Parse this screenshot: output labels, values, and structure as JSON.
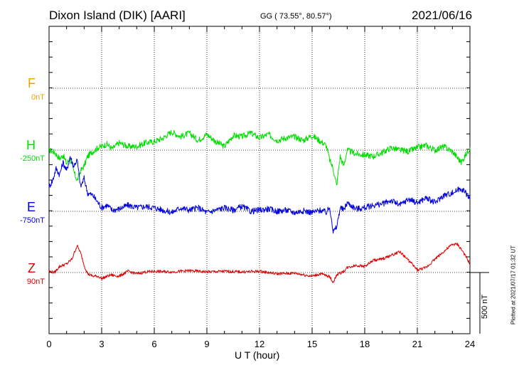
{
  "header": {
    "station": "Dixon Island (DIK)  [AARI]",
    "coords": "GG ( 73.55°,  80.57°)",
    "date": "2021/06/16"
  },
  "plotted_note": "Plotted at 2021/07/17 01:32 UT",
  "colors": {
    "F": "#f0a000",
    "H": "#00dd00",
    "E": "#0000dd",
    "Z": "#dd0000"
  },
  "chart_data": {
    "type": "line",
    "xlabel": "U T (hour)",
    "xlim": [
      0,
      24
    ],
    "x_ticks": [
      "0",
      "3",
      "6",
      "9",
      "12",
      "15",
      "18",
      "21",
      "24"
    ],
    "scale_bar": "500 nT",
    "components": [
      {
        "name": "F",
        "baseline": "0nT"
      },
      {
        "name": "H",
        "baseline": "-250nT"
      },
      {
        "name": "E",
        "baseline": "-750nT"
      },
      {
        "name": "Z",
        "baseline": "90nT"
      }
    ],
    "series": [
      {
        "name": "H",
        "unit": "nT",
        "x": [
          0,
          0.3,
          0.6,
          0.8,
          1.0,
          1.2,
          1.4,
          1.6,
          1.8,
          2.0,
          2.2,
          2.5,
          2.8,
          3.0,
          3.3,
          3.6,
          4.0,
          4.5,
          5.0,
          5.5,
          6.0,
          6.5,
          7.0,
          7.5,
          8.0,
          8.5,
          9.0,
          9.5,
          10.0,
          10.5,
          11.0,
          11.5,
          12.0,
          12.5,
          13.0,
          13.5,
          14.0,
          14.5,
          15.0,
          15.5,
          15.8,
          16.0,
          16.2,
          16.4,
          16.6,
          16.8,
          17.0,
          17.5,
          18.0,
          18.5,
          19.0,
          19.5,
          20.0,
          20.5,
          21.0,
          21.5,
          22.0,
          22.5,
          23.0,
          23.5,
          24.0
        ],
        "y": [
          -250,
          -265,
          -320,
          -290,
          -360,
          -320,
          -420,
          -500,
          -420,
          -380,
          -300,
          -260,
          -230,
          -220,
          -200,
          -240,
          -190,
          -220,
          -220,
          -190,
          -180,
          -150,
          -100,
          -140,
          -110,
          -170,
          -120,
          -180,
          -220,
          -130,
          -140,
          -110,
          -150,
          -120,
          -170,
          -150,
          -140,
          -170,
          -130,
          -180,
          -210,
          -330,
          -400,
          -540,
          -300,
          -380,
          -250,
          -280,
          -290,
          -300,
          -270,
          -230,
          -250,
          -260,
          -230,
          -210,
          -250,
          -220,
          -260,
          -350,
          -230
        ]
      },
      {
        "name": "E",
        "unit": "nT",
        "x": [
          0,
          0.2,
          0.4,
          0.6,
          0.8,
          1.0,
          1.2,
          1.4,
          1.6,
          1.8,
          2.0,
          2.2,
          2.5,
          2.8,
          3.0,
          3.3,
          3.6,
          4.0,
          4.5,
          5.0,
          5.5,
          6.0,
          6.5,
          7.0,
          7.5,
          8.0,
          8.5,
          9.0,
          9.5,
          10.0,
          10.5,
          11.0,
          11.5,
          12.0,
          12.5,
          13.0,
          13.5,
          14.0,
          14.5,
          15.0,
          15.5,
          15.8,
          16.0,
          16.1,
          16.2,
          16.4,
          16.6,
          16.8,
          17.0,
          17.5,
          18.0,
          18.5,
          19.0,
          19.5,
          20.0,
          20.5,
          21.0,
          21.5,
          22.0,
          22.5,
          23.0,
          23.5,
          24.0
        ],
        "y": [
          -550,
          -500,
          -400,
          -450,
          -350,
          -420,
          -300,
          -380,
          -330,
          -550,
          -480,
          -600,
          -620,
          -680,
          -720,
          -700,
          -740,
          -730,
          -700,
          -720,
          -710,
          -720,
          -740,
          -760,
          -720,
          -740,
          -720,
          -760,
          -740,
          -720,
          -740,
          -710,
          -750,
          -740,
          -730,
          -750,
          -740,
          -760,
          -745,
          -760,
          -740,
          -760,
          -720,
          -800,
          -920,
          -880,
          -720,
          -740,
          -680,
          -730,
          -720,
          -700,
          -690,
          -660,
          -700,
          -650,
          -680,
          -640,
          -680,
          -620,
          -600,
          -560,
          -640
        ]
      },
      {
        "name": "Z",
        "unit": "nT",
        "x": [
          0,
          0.3,
          0.6,
          1.0,
          1.3,
          1.6,
          1.8,
          2.0,
          2.2,
          2.5,
          2.8,
          3.0,
          3.5,
          4.0,
          4.5,
          5.0,
          5.5,
          6.0,
          7.0,
          8.0,
          9.0,
          10.0,
          11.0,
          12.0,
          13.0,
          14.0,
          15.0,
          15.5,
          16.0,
          16.2,
          16.4,
          16.8,
          17.0,
          17.5,
          18.0,
          18.5,
          19.0,
          19.5,
          20.0,
          20.5,
          21.0,
          21.5,
          22.0,
          22.5,
          23.0,
          23.3,
          23.6,
          24.0
        ],
        "y": [
          100,
          90,
          140,
          160,
          200,
          310,
          250,
          150,
          80,
          60,
          60,
          40,
          70,
          60,
          100,
          80,
          95,
          100,
          95,
          105,
          95,
          100,
          95,
          100,
          80,
          85,
          60,
          80,
          55,
          10,
          70,
          100,
          130,
          150,
          140,
          190,
          200,
          230,
          260,
          190,
          110,
          130,
          200,
          260,
          320,
          320,
          260,
          160
        ]
      }
    ]
  }
}
